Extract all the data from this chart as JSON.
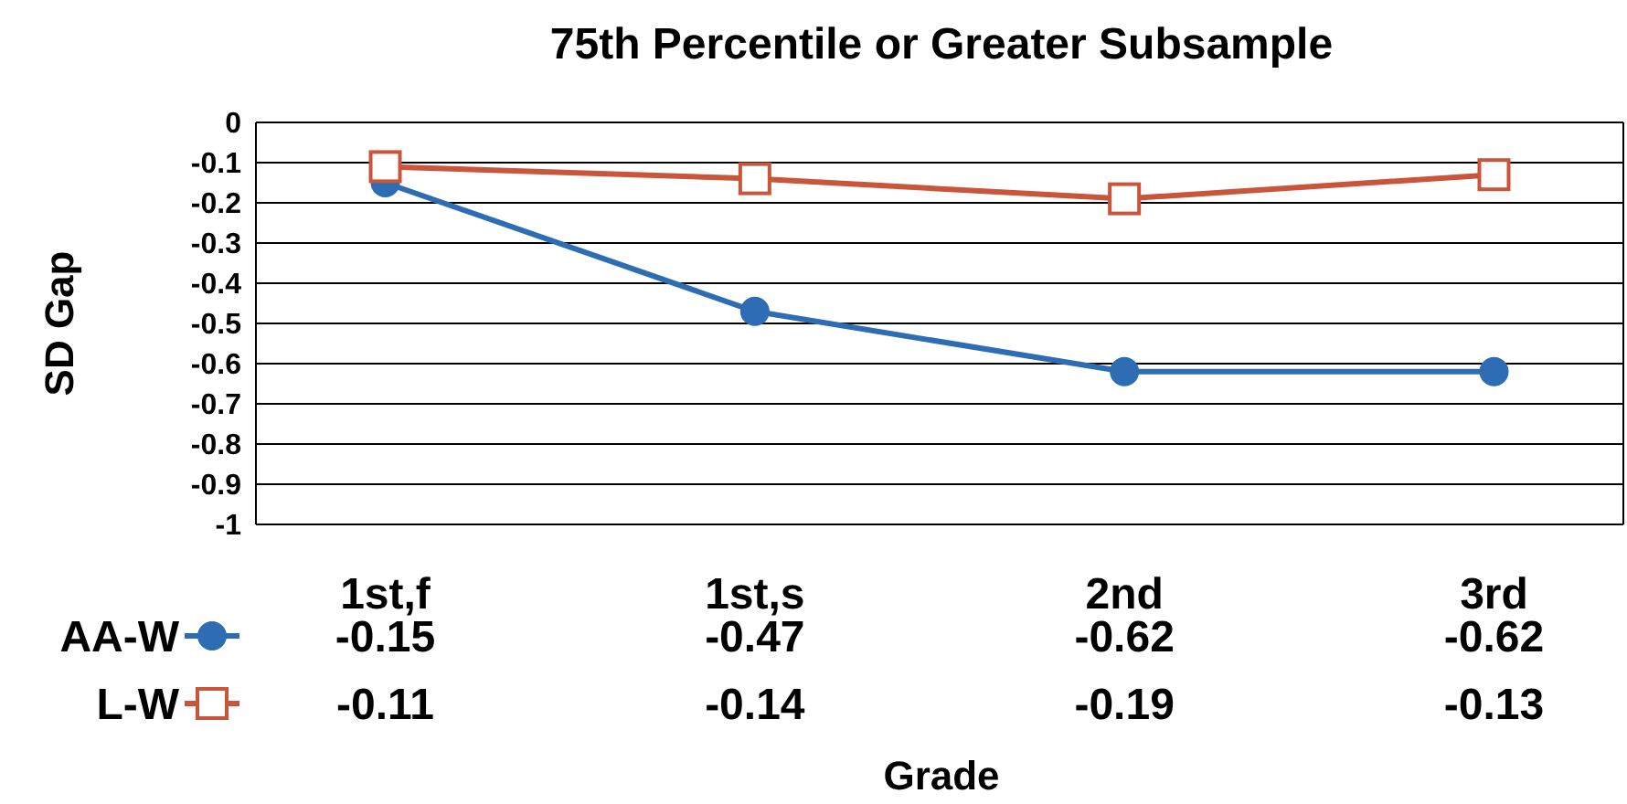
{
  "chart_data": {
    "type": "line",
    "title": "75th Percentile or Greater Subsample",
    "xlabel": "Grade",
    "ylabel": "SD Gap",
    "categories": [
      "1st,f",
      "1st,s",
      "2nd",
      "3rd"
    ],
    "series": [
      {
        "name": "AA-W",
        "color": "#2e6db4",
        "marker": "circle",
        "values": [
          -0.15,
          -0.47,
          -0.62,
          -0.62
        ]
      },
      {
        "name": "L-W",
        "color": "#c9553a",
        "marker": "square",
        "values": [
          -0.11,
          -0.14,
          -0.19,
          -0.13
        ]
      }
    ],
    "ylim": [
      -1,
      0
    ],
    "yticks": [
      0,
      -0.1,
      -0.2,
      -0.3,
      -0.4,
      -0.5,
      -0.6,
      -0.7,
      -0.8,
      -0.9,
      -1
    ],
    "grid": "y",
    "legend": "bottom",
    "data_labels": true,
    "line_style": "solid"
  }
}
